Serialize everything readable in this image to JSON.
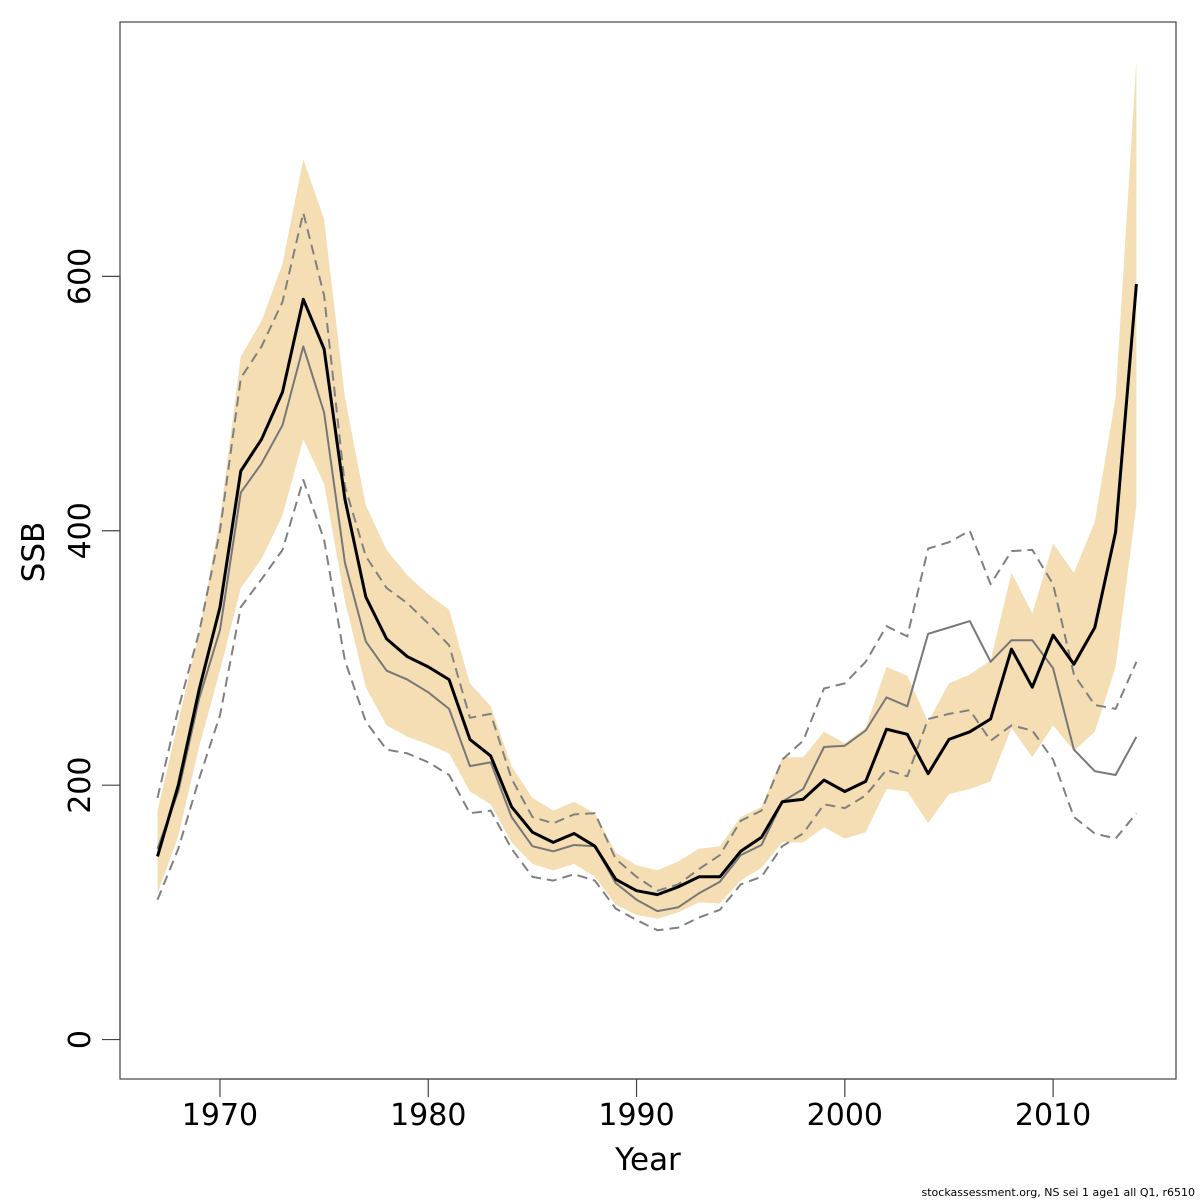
{
  "chart_data": {
    "type": "line",
    "x_label": "Year",
    "y_label": "SSB",
    "footnote": "stockassessment.org, NS sei 1 age1 all Q1, r6510",
    "x": [
      1967,
      1968,
      1969,
      1970,
      1971,
      1972,
      1973,
      1974,
      1975,
      1976,
      1977,
      1978,
      1979,
      1980,
      1981,
      1982,
      1983,
      1984,
      1985,
      1986,
      1987,
      1988,
      1989,
      1990,
      1991,
      1992,
      1993,
      1994,
      1995,
      1996,
      1997,
      1998,
      1999,
      2000,
      2001,
      2002,
      2003,
      2004,
      2005,
      2006,
      2007,
      2008,
      2009,
      2010,
      2011,
      2012,
      2013,
      2014
    ],
    "band": {
      "color": "#f5deb3",
      "upper": [
        180,
        250,
        320,
        410,
        537,
        565,
        610,
        692,
        645,
        505,
        420,
        385,
        365,
        350,
        338,
        280,
        262,
        215,
        190,
        180,
        187,
        178,
        147,
        137,
        133,
        140,
        150,
        152,
        175,
        183,
        222,
        222,
        242,
        233,
        245,
        293,
        286,
        250,
        280,
        287,
        298,
        367,
        335,
        390,
        367,
        407,
        505,
        770
      ],
      "lower": [
        115,
        160,
        230,
        290,
        355,
        378,
        412,
        472,
        437,
        345,
        277,
        247,
        238,
        232,
        225,
        195,
        185,
        155,
        138,
        133,
        138,
        128,
        106,
        98,
        95,
        100,
        108,
        107,
        125,
        135,
        155,
        155,
        167,
        158,
        163,
        197,
        195,
        170,
        193,
        197,
        203,
        245,
        222,
        247,
        227,
        242,
        293,
        420
      ]
    },
    "series": [
      {
        "color": "#808080",
        "dash": true,
        "width": 2,
        "values": [
          190,
          260,
          320,
          400,
          520,
          545,
          580,
          650,
          585,
          435,
          380,
          355,
          343,
          327,
          310,
          253,
          256,
          205,
          175,
          170,
          177,
          178,
          142,
          128,
          117,
          122,
          134,
          145,
          172,
          180,
          220,
          235,
          276,
          280,
          297,
          325,
          317,
          386,
          391,
          400,
          358,
          384,
          385,
          358,
          287,
          263,
          260,
          297
        ]
      },
      {
        "color": "#808080",
        "dash": true,
        "width": 2,
        "values": [
          110,
          150,
          205,
          255,
          340,
          362,
          385,
          440,
          393,
          298,
          250,
          228,
          225,
          218,
          208,
          178,
          180,
          150,
          128,
          125,
          130,
          125,
          103,
          94,
          86,
          88,
          96,
          102,
          122,
          128,
          152,
          162,
          185,
          182,
          192,
          212,
          207,
          252,
          256,
          259,
          235,
          247,
          243,
          220,
          175,
          162,
          158,
          178
        ]
      },
      {
        "color": "#777777",
        "dash": false,
        "width": 2,
        "values": [
          150,
          195,
          268,
          322,
          430,
          453,
          483,
          545,
          493,
          375,
          313,
          290,
          283,
          273,
          260,
          215,
          218,
          175,
          152,
          148,
          153,
          152,
          123,
          110,
          101,
          104,
          115,
          124,
          145,
          153,
          187,
          197,
          230,
          231,
          243,
          269,
          262,
          319,
          324,
          329,
          297,
          314,
          314,
          292,
          228,
          211,
          208,
          238
        ]
      },
      {
        "color": "#000000",
        "dash": false,
        "width": 3,
        "values": [
          144,
          200,
          275,
          340,
          447,
          472,
          509,
          582,
          543,
          425,
          348,
          315,
          301,
          293,
          283,
          236,
          223,
          183,
          163,
          155,
          162,
          152,
          126,
          117,
          114,
          120,
          128,
          128,
          148,
          159,
          187,
          189,
          204,
          195,
          203,
          244,
          240,
          209,
          236,
          242,
          252,
          307,
          277,
          318,
          295,
          324,
          399,
          594
        ]
      }
    ],
    "xlim": [
      1965.2,
      2015.9
    ],
    "ylim": [
      -31,
      800
    ],
    "xticks": [
      1970,
      1980,
      1990,
      2000,
      2010
    ],
    "yticks": [
      0,
      200,
      400,
      600
    ]
  }
}
